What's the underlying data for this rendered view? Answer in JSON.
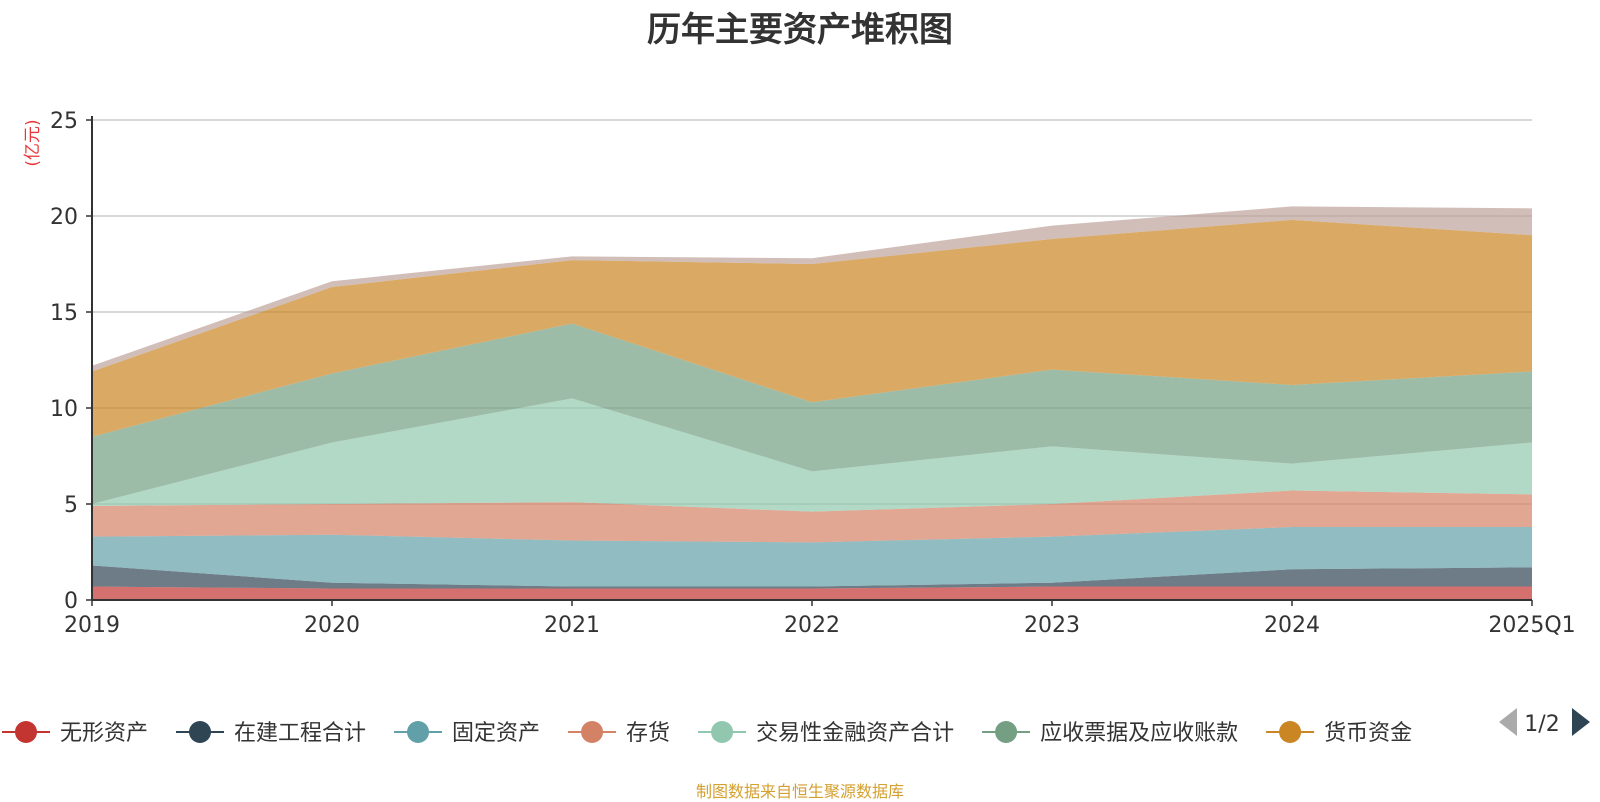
{
  "chart_data": {
    "type": "area",
    "stacked": true,
    "title": "历年主要资产堆积图",
    "ylabel": "(亿元)",
    "xlabel": "",
    "categories": [
      "2019",
      "2020",
      "2021",
      "2022",
      "2023",
      "2024",
      "2025Q1"
    ],
    "ylim": [
      0,
      25
    ],
    "yticks": [
      0,
      5,
      10,
      15,
      20,
      25
    ],
    "grid": true,
    "legend_position": "bottom",
    "legend_page": "1/2",
    "series": [
      {
        "name": "无形资产",
        "color": "#c23531",
        "values": [
          0.7,
          0.6,
          0.6,
          0.6,
          0.7,
          0.7,
          0.7
        ]
      },
      {
        "name": "在建工程合计",
        "color": "#2f4554",
        "values": [
          1.1,
          0.3,
          0.1,
          0.1,
          0.2,
          0.9,
          1.0
        ]
      },
      {
        "name": "固定资产",
        "color": "#61a0a8",
        "values": [
          1.5,
          2.5,
          2.4,
          2.3,
          2.4,
          2.2,
          2.1
        ]
      },
      {
        "name": "存货",
        "color": "#d48265",
        "values": [
          1.6,
          1.6,
          2.0,
          1.6,
          1.7,
          1.9,
          1.7
        ]
      },
      {
        "name": "交易性金融资产合计",
        "color": "#91c7ae",
        "values": [
          0.1,
          3.2,
          5.4,
          2.1,
          3.0,
          1.4,
          2.7
        ]
      },
      {
        "name": "应收票据及应收账款",
        "color": "#749f83",
        "values": [
          3.5,
          3.6,
          3.9,
          3.6,
          4.0,
          4.1,
          3.7
        ]
      },
      {
        "name": "货币资金",
        "color": "#ca8622",
        "values": [
          3.4,
          4.5,
          3.3,
          7.2,
          6.8,
          8.6,
          7.1
        ]
      },
      {
        "name": "",
        "color": "#bda29a",
        "values": [
          0.3,
          0.3,
          0.2,
          0.3,
          0.7,
          0.7,
          1.4
        ]
      }
    ]
  },
  "footer": "制图数据来自恒生聚源数据库",
  "colors": {
    "axis": "#333333",
    "grid": "#cccccc",
    "unit": "#e8373a",
    "footer": "#d4a030",
    "nav_active": "#2f4554",
    "nav_inactive": "#aaaaaa"
  }
}
